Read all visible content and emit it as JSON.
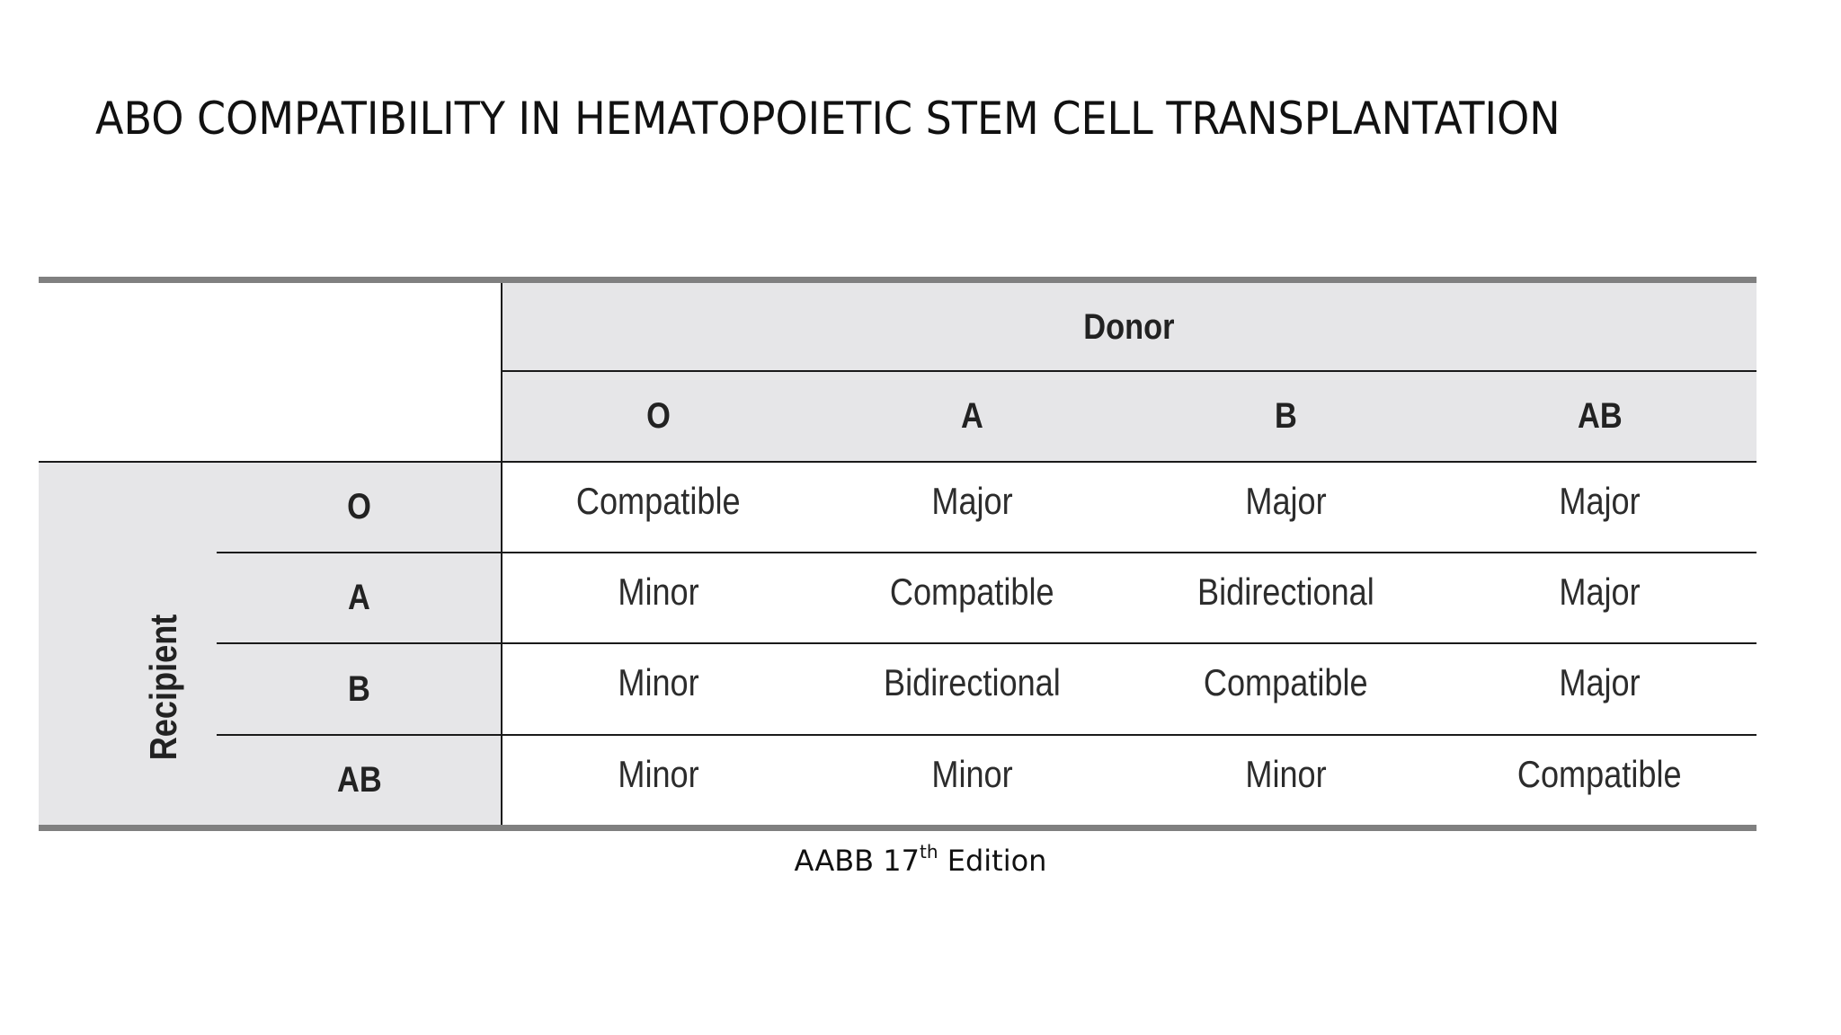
{
  "slide": {
    "title": "ABO COMPATIBILITY IN HEMATOPOIETIC STEM CELL TRANSPLANTATION",
    "caption_prefix": "AABB 17",
    "caption_sup": "th",
    "caption_suffix": " Edition"
  },
  "table": {
    "column_group_label": "Donor",
    "row_group_label": "Recipient",
    "columns": [
      "O",
      "A",
      "B",
      "AB"
    ],
    "rows": [
      {
        "label": "O",
        "cells": [
          "Compatible",
          "Major",
          "Major",
          "Major"
        ]
      },
      {
        "label": "A",
        "cells": [
          "Minor",
          "Compatible",
          "Bidirectional",
          "Major"
        ]
      },
      {
        "label": "B",
        "cells": [
          "Minor",
          "Bidirectional",
          "Compatible",
          "Major"
        ]
      },
      {
        "label": "AB",
        "cells": [
          "Minor",
          "Minor",
          "Minor",
          "Compatible"
        ]
      }
    ],
    "colors": {
      "header_fill": "#e6e6e8",
      "rule": "#808080",
      "line": "#1a1a1a"
    }
  }
}
